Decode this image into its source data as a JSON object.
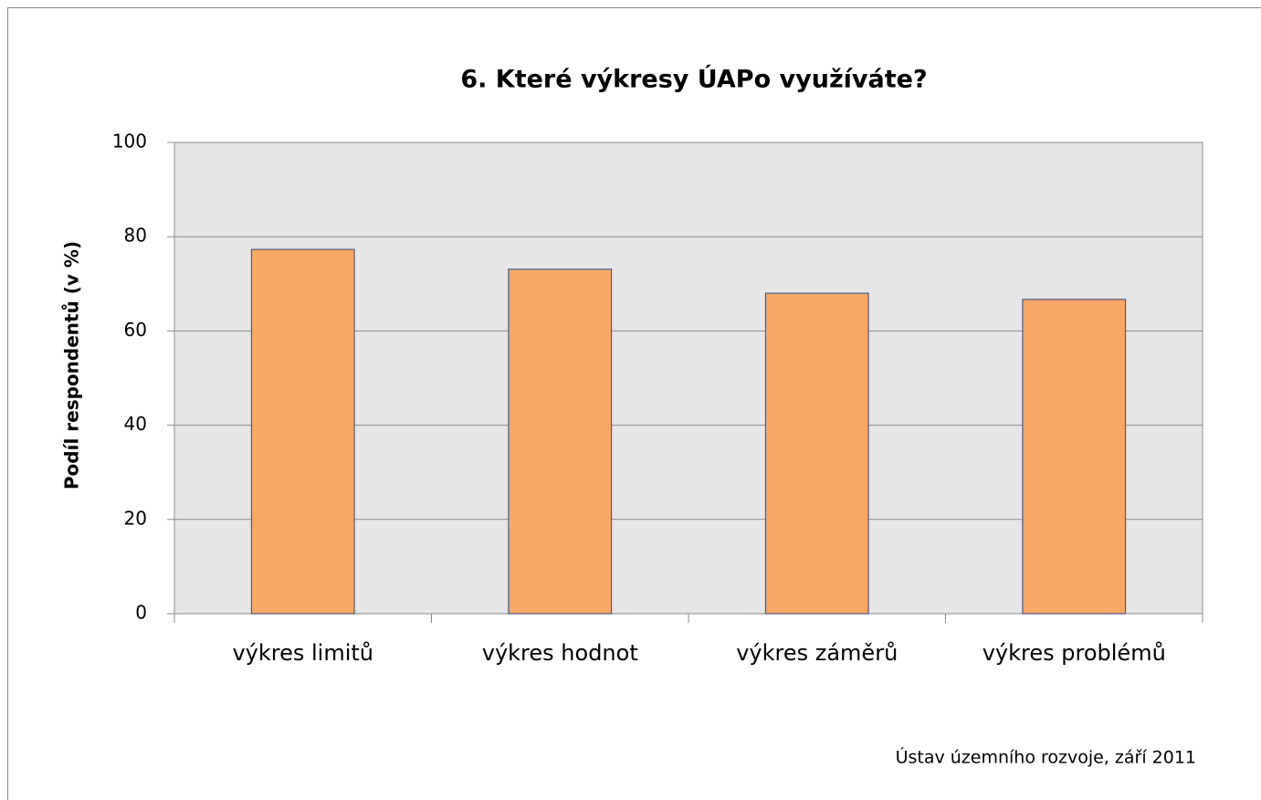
{
  "chart_data": {
    "type": "bar",
    "title": "6. Které výkresy ÚAPo využíváte?",
    "y_label": "Podíl respondentů (v %)",
    "source": "Ústav územního rozvoje, září 2011",
    "categories": [
      "výkres limitů",
      "výkres hodnot",
      "výkres záměrů",
      "výkres problémů"
    ],
    "values": [
      77.3,
      73.1,
      68.0,
      66.7
    ],
    "color": "#f8a966",
    "ylim": [
      0,
      100
    ],
    "yticks": [
      0,
      20,
      40,
      60,
      80,
      100
    ],
    "grid": true
  }
}
